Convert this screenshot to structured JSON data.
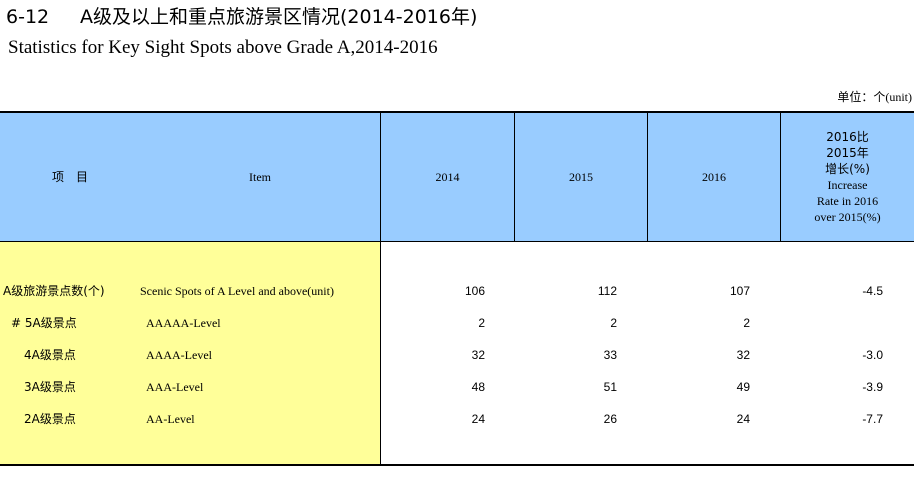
{
  "title": {
    "number": "6-12",
    "cn": "A级及以上和重点旅游景区情况(2014-2016年)"
  },
  "subtitle": "Statistics for Key Sight Spots above Grade A,2014-2016",
  "unit_label": "单位：个(unit)",
  "header": {
    "item_cn": "项　目",
    "item_en": "Item",
    "y2014": "2014",
    "y2015": "2015",
    "y2016": "2016",
    "growth_lines": [
      "2016比",
      "2015年",
      "增长(%)",
      "Increase",
      "Rate in 2016",
      "over 2015(%)"
    ]
  },
  "rows": [
    {
      "cn": "A级旅游景点数(个)",
      "en": "Scenic Spots of A Level and above(unit)",
      "v2014": "106",
      "v2015": "112",
      "v2016": "107",
      "growth": "-4.5"
    },
    {
      "cn": "# 5A级景点",
      "en": "AAAAA-Level",
      "v2014": "2",
      "v2015": "2",
      "v2016": "2",
      "growth": ""
    },
    {
      "cn": "4A级景点",
      "en": "AAAA-Level",
      "v2014": "32",
      "v2015": "33",
      "v2016": "32",
      "growth": "-3.0"
    },
    {
      "cn": "3A级景点",
      "en": "AAA-Level",
      "v2014": "48",
      "v2015": "51",
      "v2016": "49",
      "growth": "-3.9"
    },
    {
      "cn": "2A级景点",
      "en": "AA-Level",
      "v2014": "24",
      "v2015": "26",
      "v2016": "24",
      "growth": "-7.7"
    }
  ]
}
